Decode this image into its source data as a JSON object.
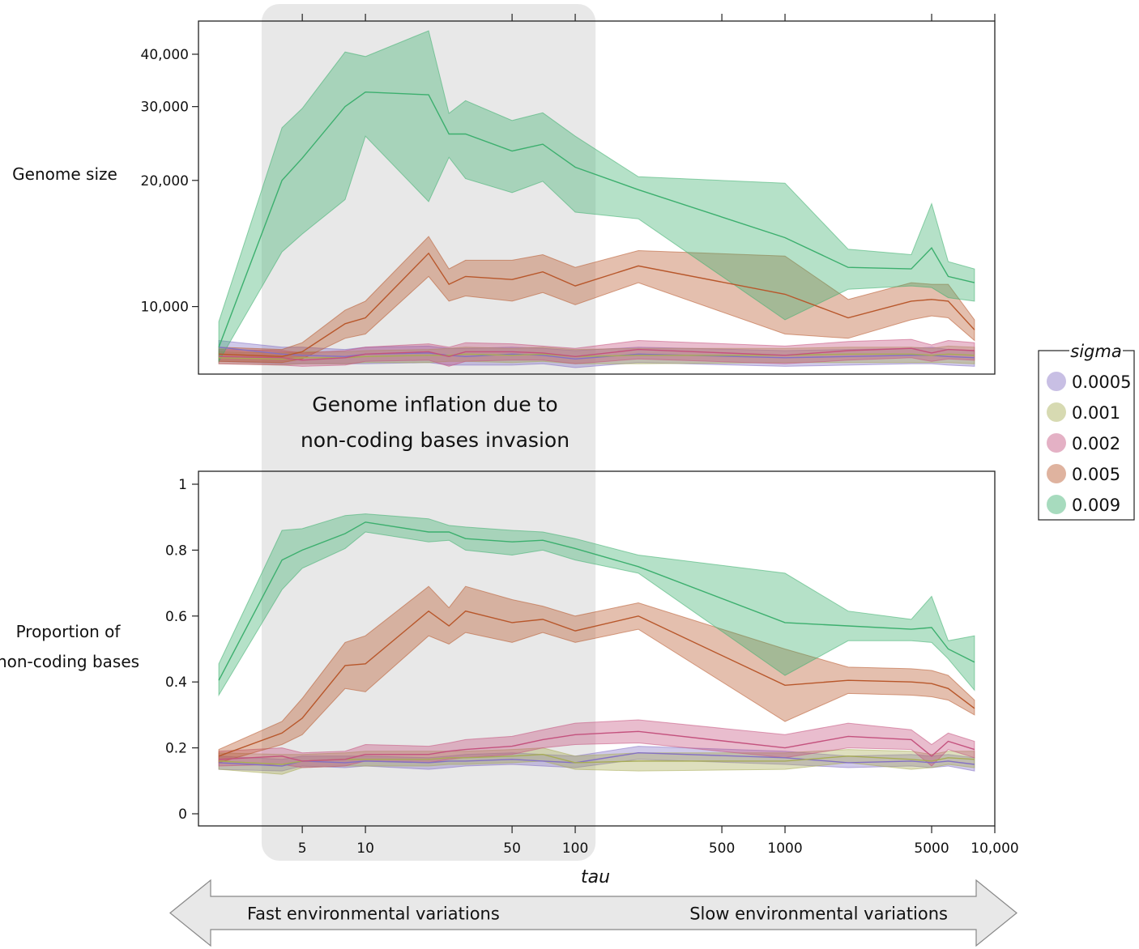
{
  "chart_data": [
    {
      "type": "line",
      "ylabel": "Genome size",
      "yscale": "log",
      "ylim": [
        6900,
        48000
      ],
      "yticks": [
        10000,
        20000,
        30000,
        40000
      ],
      "ytick_labels": [
        "10,000",
        "20,000",
        "30,000",
        "40,000"
      ],
      "series": [
        {
          "name": "0.0005",
          "x": [
            2,
            4,
            5,
            8,
            10,
            20,
            25,
            30,
            50,
            70,
            100,
            200,
            1000,
            2000,
            4000,
            5000,
            6000,
            8000
          ],
          "y": [
            8000,
            7700,
            7650,
            7600,
            7700,
            7750,
            7650,
            7600,
            7700,
            7650,
            7500,
            7700,
            7550,
            7600,
            7650,
            7650,
            7600,
            7550
          ],
          "lo": [
            7400,
            7300,
            7300,
            7300,
            7300,
            7350,
            7250,
            7250,
            7250,
            7300,
            7150,
            7350,
            7200,
            7250,
            7300,
            7300,
            7250,
            7200
          ],
          "hi": [
            8300,
            8000,
            8000,
            7900,
            8000,
            8050,
            7950,
            7950,
            8000,
            7950,
            7850,
            8000,
            7850,
            7900,
            7950,
            8000,
            7900,
            7850
          ]
        },
        {
          "name": "0.001",
          "x": [
            2,
            4,
            5,
            8,
            10,
            20,
            25,
            30,
            50,
            70,
            100,
            200,
            1000,
            2000,
            4000,
            5000,
            6000,
            8000
          ],
          "y": [
            7550,
            7500,
            7550,
            7550,
            7600,
            7650,
            7650,
            7700,
            7650,
            7700,
            7600,
            7650,
            7650,
            7700,
            7700,
            7650,
            7700,
            7650
          ],
          "lo": [
            7300,
            7250,
            7300,
            7300,
            7350,
            7350,
            7400,
            7400,
            7350,
            7400,
            7300,
            7300,
            7350,
            7350,
            7350,
            7350,
            7350,
            7300
          ],
          "hi": [
            7800,
            7750,
            7800,
            7800,
            7850,
            7900,
            7950,
            8000,
            7950,
            8000,
            7900,
            7950,
            7950,
            8000,
            8000,
            7950,
            8050,
            8000
          ]
        },
        {
          "name": "0.002",
          "x": [
            2,
            4,
            5,
            8,
            10,
            20,
            25,
            30,
            50,
            70,
            100,
            200,
            1000,
            2000,
            4000,
            5000,
            6000,
            8000
          ],
          "y": [
            7600,
            7550,
            7450,
            7550,
            7700,
            7800,
            7600,
            7800,
            7800,
            7750,
            7600,
            7900,
            7650,
            7850,
            7950,
            7750,
            7900,
            7850
          ],
          "lo": [
            7300,
            7250,
            7200,
            7250,
            7400,
            7450,
            7200,
            7400,
            7450,
            7450,
            7300,
            7500,
            7300,
            7450,
            7550,
            7400,
            7500,
            7450
          ],
          "hi": [
            7900,
            7850,
            7750,
            7850,
            8000,
            8150,
            8000,
            8200,
            8150,
            8050,
            7950,
            8300,
            8050,
            8250,
            8350,
            8100,
            8300,
            8200
          ]
        },
        {
          "name": "0.005",
          "x": [
            2,
            4,
            5,
            8,
            10,
            20,
            25,
            30,
            50,
            70,
            100,
            200,
            1000,
            2000,
            4000,
            5000,
            6000,
            8000
          ],
          "y": [
            7700,
            7600,
            7800,
            9100,
            9400,
            13400,
            11300,
            11800,
            11600,
            12100,
            11200,
            12500,
            10700,
            9400,
            10300,
            10400,
            10300,
            8800
          ],
          "lo": [
            7400,
            7350,
            7500,
            8400,
            8600,
            11800,
            10300,
            10600,
            10300,
            10800,
            10100,
            11400,
            8600,
            8400,
            9300,
            9500,
            9400,
            8300
          ],
          "hi": [
            8000,
            7900,
            8200,
            9800,
            10300,
            14700,
            12300,
            12900,
            12900,
            13300,
            12400,
            13600,
            13200,
            10400,
            11400,
            11300,
            11300,
            9300
          ]
        },
        {
          "name": "0.009",
          "x": [
            2,
            4,
            5,
            8,
            10,
            20,
            25,
            30,
            50,
            70,
            100,
            200,
            1000,
            2000,
            4000,
            5000,
            6000,
            8000
          ],
          "y": [
            8000,
            20000,
            22600,
            30000,
            32500,
            32000,
            25800,
            25800,
            23500,
            24400,
            21500,
            19000,
            14600,
            12400,
            12300,
            13800,
            11800,
            11400
          ],
          "lo": [
            7400,
            13500,
            14900,
            18000,
            25500,
            17800,
            22700,
            20200,
            18700,
            19900,
            16800,
            16200,
            9300,
            11000,
            11200,
            11100,
            10500,
            10300
          ],
          "hi": [
            9200,
            26700,
            29700,
            40500,
            39500,
            45500,
            28900,
            31000,
            27800,
            29000,
            25500,
            20400,
            19700,
            13700,
            13300,
            17600,
            12800,
            12300
          ]
        }
      ]
    },
    {
      "type": "line",
      "ylabel": "Proportion of non-coding bases",
      "ylim": [
        0,
        1
      ],
      "yticks": [
        0,
        0.2,
        0.4,
        0.6,
        0.8,
        1
      ],
      "ytick_labels": [
        "0",
        "0.2",
        "0.4",
        "0.6",
        "0.8",
        "1"
      ],
      "series": [
        {
          "name": "0.0005",
          "x": [
            2,
            4,
            5,
            8,
            10,
            20,
            25,
            30,
            50,
            70,
            100,
            200,
            1000,
            2000,
            4000,
            5000,
            6000,
            8000
          ],
          "y": [
            0.155,
            0.145,
            0.16,
            0.155,
            0.16,
            0.155,
            0.16,
            0.16,
            0.165,
            0.16,
            0.155,
            0.185,
            0.17,
            0.155,
            0.16,
            0.155,
            0.16,
            0.15
          ],
          "lo": [
            0.135,
            0.13,
            0.145,
            0.14,
            0.145,
            0.135,
            0.14,
            0.145,
            0.15,
            0.145,
            0.14,
            0.165,
            0.15,
            0.14,
            0.145,
            0.14,
            0.145,
            0.13
          ],
          "hi": [
            0.175,
            0.165,
            0.175,
            0.175,
            0.175,
            0.17,
            0.175,
            0.18,
            0.185,
            0.18,
            0.175,
            0.205,
            0.19,
            0.175,
            0.18,
            0.175,
            0.18,
            0.17
          ]
        },
        {
          "name": "0.001",
          "x": [
            2,
            4,
            5,
            8,
            10,
            20,
            25,
            30,
            50,
            70,
            100,
            200,
            1000,
            2000,
            4000,
            5000,
            6000,
            8000
          ],
          "y": [
            0.16,
            0.15,
            0.16,
            0.165,
            0.165,
            0.165,
            0.17,
            0.17,
            0.175,
            0.18,
            0.155,
            0.16,
            0.16,
            0.175,
            0.165,
            0.16,
            0.17,
            0.165
          ],
          "lo": [
            0.135,
            0.12,
            0.14,
            0.145,
            0.145,
            0.145,
            0.15,
            0.15,
            0.155,
            0.16,
            0.135,
            0.13,
            0.135,
            0.155,
            0.135,
            0.14,
            0.15,
            0.14
          ],
          "hi": [
            0.185,
            0.18,
            0.18,
            0.185,
            0.19,
            0.19,
            0.19,
            0.19,
            0.195,
            0.2,
            0.175,
            0.185,
            0.185,
            0.195,
            0.19,
            0.18,
            0.19,
            0.19
          ]
        },
        {
          "name": "0.002",
          "x": [
            2,
            4,
            5,
            8,
            10,
            20,
            25,
            30,
            50,
            70,
            100,
            200,
            1000,
            2000,
            4000,
            5000,
            6000,
            8000
          ],
          "y": [
            0.165,
            0.175,
            0.16,
            0.165,
            0.18,
            0.18,
            0.19,
            0.195,
            0.205,
            0.225,
            0.24,
            0.25,
            0.2,
            0.235,
            0.225,
            0.175,
            0.22,
            0.195
          ],
          "lo": [
            0.145,
            0.15,
            0.14,
            0.145,
            0.16,
            0.155,
            0.165,
            0.17,
            0.18,
            0.2,
            0.21,
            0.215,
            0.17,
            0.2,
            0.195,
            0.145,
            0.195,
            0.17
          ],
          "hi": [
            0.19,
            0.2,
            0.185,
            0.19,
            0.21,
            0.205,
            0.215,
            0.225,
            0.235,
            0.255,
            0.275,
            0.285,
            0.24,
            0.275,
            0.255,
            0.21,
            0.245,
            0.22
          ]
        },
        {
          "name": "0.005",
          "x": [
            2,
            4,
            5,
            8,
            10,
            20,
            25,
            30,
            50,
            70,
            100,
            200,
            1000,
            2000,
            4000,
            5000,
            6000,
            8000
          ],
          "y": [
            0.175,
            0.245,
            0.29,
            0.45,
            0.455,
            0.615,
            0.57,
            0.615,
            0.58,
            0.59,
            0.555,
            0.6,
            0.39,
            0.405,
            0.4,
            0.395,
            0.38,
            0.32
          ],
          "lo": [
            0.155,
            0.21,
            0.24,
            0.38,
            0.37,
            0.54,
            0.515,
            0.55,
            0.52,
            0.55,
            0.52,
            0.56,
            0.28,
            0.365,
            0.36,
            0.355,
            0.345,
            0.3
          ],
          "hi": [
            0.195,
            0.28,
            0.35,
            0.52,
            0.54,
            0.69,
            0.625,
            0.69,
            0.65,
            0.63,
            0.6,
            0.64,
            0.5,
            0.445,
            0.44,
            0.435,
            0.42,
            0.345
          ]
        },
        {
          "name": "0.009",
          "x": [
            2,
            4,
            5,
            8,
            10,
            20,
            25,
            30,
            50,
            70,
            100,
            200,
            1000,
            2000,
            4000,
            5000,
            6000,
            8000
          ],
          "y": [
            0.405,
            0.77,
            0.8,
            0.85,
            0.885,
            0.855,
            0.855,
            0.835,
            0.825,
            0.83,
            0.805,
            0.75,
            0.58,
            0.57,
            0.56,
            0.565,
            0.5,
            0.46
          ],
          "lo": [
            0.36,
            0.68,
            0.745,
            0.805,
            0.855,
            0.825,
            0.83,
            0.8,
            0.785,
            0.8,
            0.77,
            0.73,
            0.42,
            0.525,
            0.525,
            0.52,
            0.47,
            0.375
          ],
          "hi": [
            0.455,
            0.86,
            0.865,
            0.905,
            0.91,
            0.895,
            0.875,
            0.87,
            0.86,
            0.855,
            0.835,
            0.785,
            0.73,
            0.615,
            0.59,
            0.66,
            0.525,
            0.54
          ]
        }
      ]
    }
  ],
  "xaxis": {
    "label": "tau",
    "scale": "log",
    "xlim": [
      1.6,
      10000
    ],
    "ticks": [
      5,
      10,
      50,
      100,
      500,
      1000,
      5000,
      10000
    ],
    "tick_labels": [
      "5",
      "10",
      "50",
      "100",
      "500",
      "1000",
      "5000",
      "10,000"
    ]
  },
  "highlight": {
    "x_range": [
      3.2,
      125
    ],
    "text": [
      "Genome inflation due to",
      "non-coding bases invasion"
    ]
  },
  "legend": {
    "title": "sigma",
    "placement": "right",
    "entries": [
      {
        "label": "0.0005",
        "color": "#8470c4"
      },
      {
        "label": "0.001",
        "color": "#a7ac55"
      },
      {
        "label": "0.002",
        "color": "#c4527e"
      },
      {
        "label": "0.005",
        "color": "#b8572b"
      },
      {
        "label": "0.009",
        "color": "#3caf6e"
      }
    ]
  },
  "arrow": {
    "left_text": "Fast environmental variations",
    "right_text": "Slow environmental variations"
  }
}
